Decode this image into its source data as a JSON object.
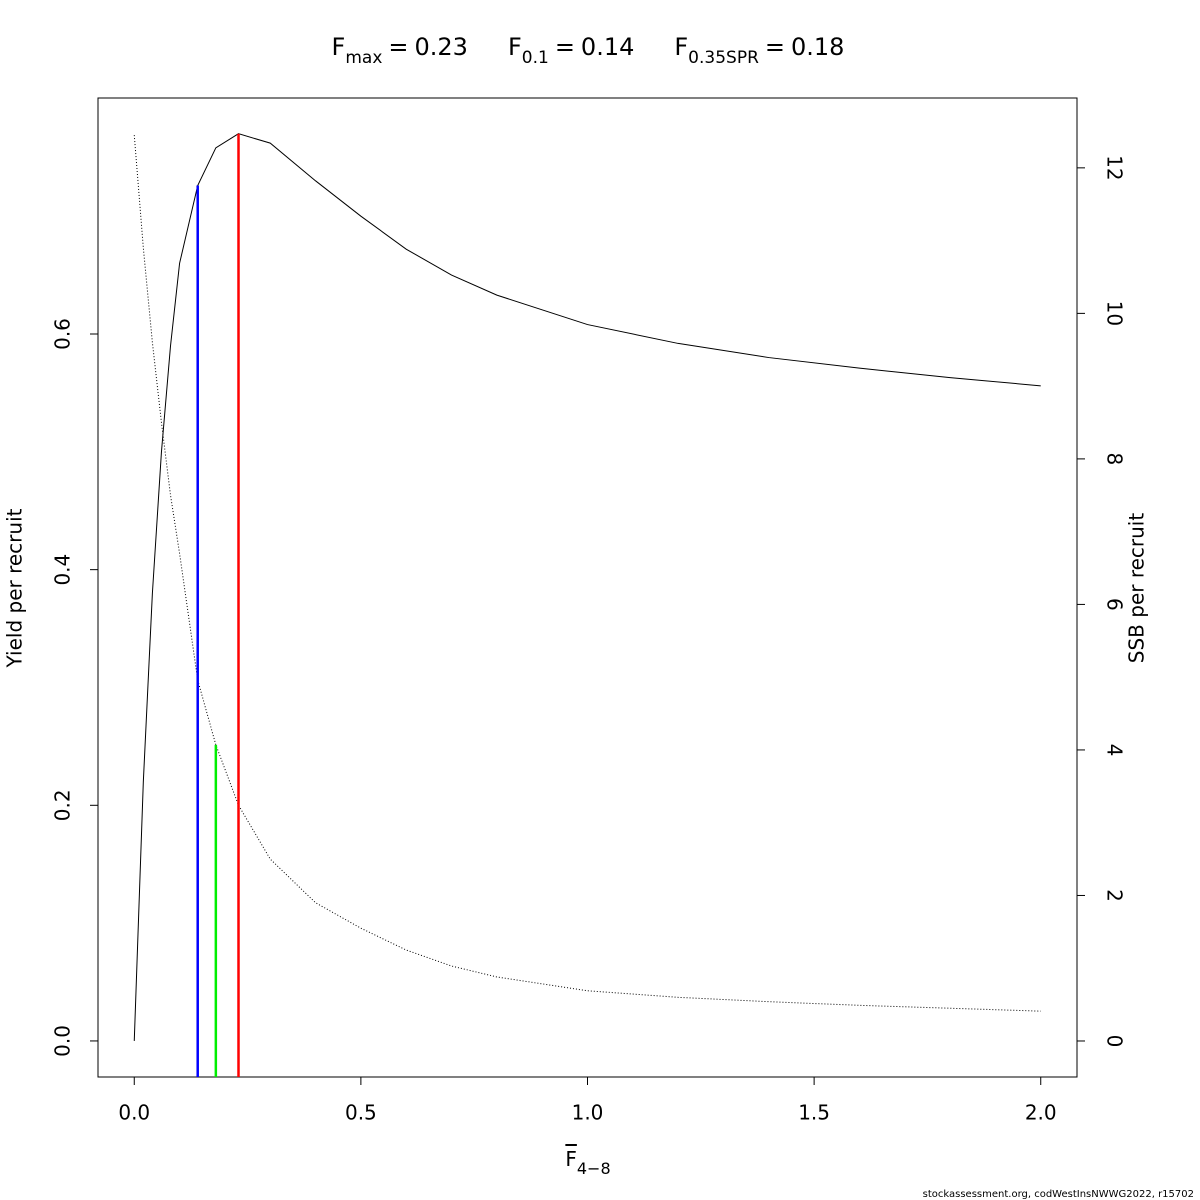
{
  "chart_data": {
    "type": "line",
    "title_parts": [
      {
        "symbol": "F",
        "subscript": "max",
        "relation": "=",
        "value": 0.23
      },
      {
        "symbol": "F",
        "subscript": "0.1",
        "relation": "=",
        "value": 0.14
      },
      {
        "symbol": "F",
        "subscript": "0.35SPR",
        "relation": "=",
        "value": 0.18
      }
    ],
    "x_label": {
      "symbol": "F",
      "subscript": "4−8"
    },
    "y_label": "Yield per recruit",
    "y2_label": "SSB per recruit",
    "footer": "stockassessment.org, codWestInsNWWG2022, r15702",
    "x": [
      0,
      0.02,
      0.04,
      0.06,
      0.08,
      0.1,
      0.14,
      0.18,
      0.23,
      0.3,
      0.4,
      0.5,
      0.6,
      0.7,
      0.8,
      1.0,
      1.2,
      1.4,
      1.6,
      1.8,
      2.0
    ],
    "series": [
      {
        "color": "#000000",
        "line_style": "solid",
        "values": [
          0,
          0.22,
          0.38,
          0.5,
          0.59,
          0.66,
          0.726,
          0.758,
          0.77,
          0.762,
          0.73,
          0.7,
          0.672,
          0.65,
          0.633,
          0.608,
          0.592,
          0.58,
          0.571,
          0.563,
          0.556
        ]
      },
      {
        "color": "#000000",
        "line_style": "dotted",
        "axis": "y2",
        "values": [
          12.45,
          10.9,
          9.6,
          8.5,
          7.5,
          6.7,
          4.96,
          4.07,
          3.24,
          2.5,
          1.9,
          1.55,
          1.25,
          1.03,
          0.88,
          0.69,
          0.6,
          0.54,
          0.49,
          0.45,
          0.41
        ]
      }
    ],
    "reference_lines": [
      {
        "x": 0.14,
        "top": 0.726,
        "color": "#0000ff"
      },
      {
        "x": 0.18,
        "top": 4.07,
        "axis": "y2",
        "color": "#00ee00"
      },
      {
        "x": 0.23,
        "top": 0.77,
        "color": "#ff0000"
      }
    ],
    "xlim": [
      -0.08,
      2.08
    ],
    "xticks": [
      {
        "value": 0,
        "label": "0.0"
      },
      0.5,
      {
        "value": 1,
        "label": "1.0"
      },
      1.5,
      {
        "value": 2,
        "label": "2.0"
      }
    ],
    "ylim": [
      -0.0306,
      0.8003
    ],
    "yticks": [
      {
        "value": 0,
        "label": "0.0"
      },
      0.2,
      0.4,
      0.6
    ],
    "y2lim": [
      -0.495,
      12.96
    ],
    "y2ticks": [
      0,
      2,
      4,
      6,
      8,
      10,
      12
    ]
  }
}
